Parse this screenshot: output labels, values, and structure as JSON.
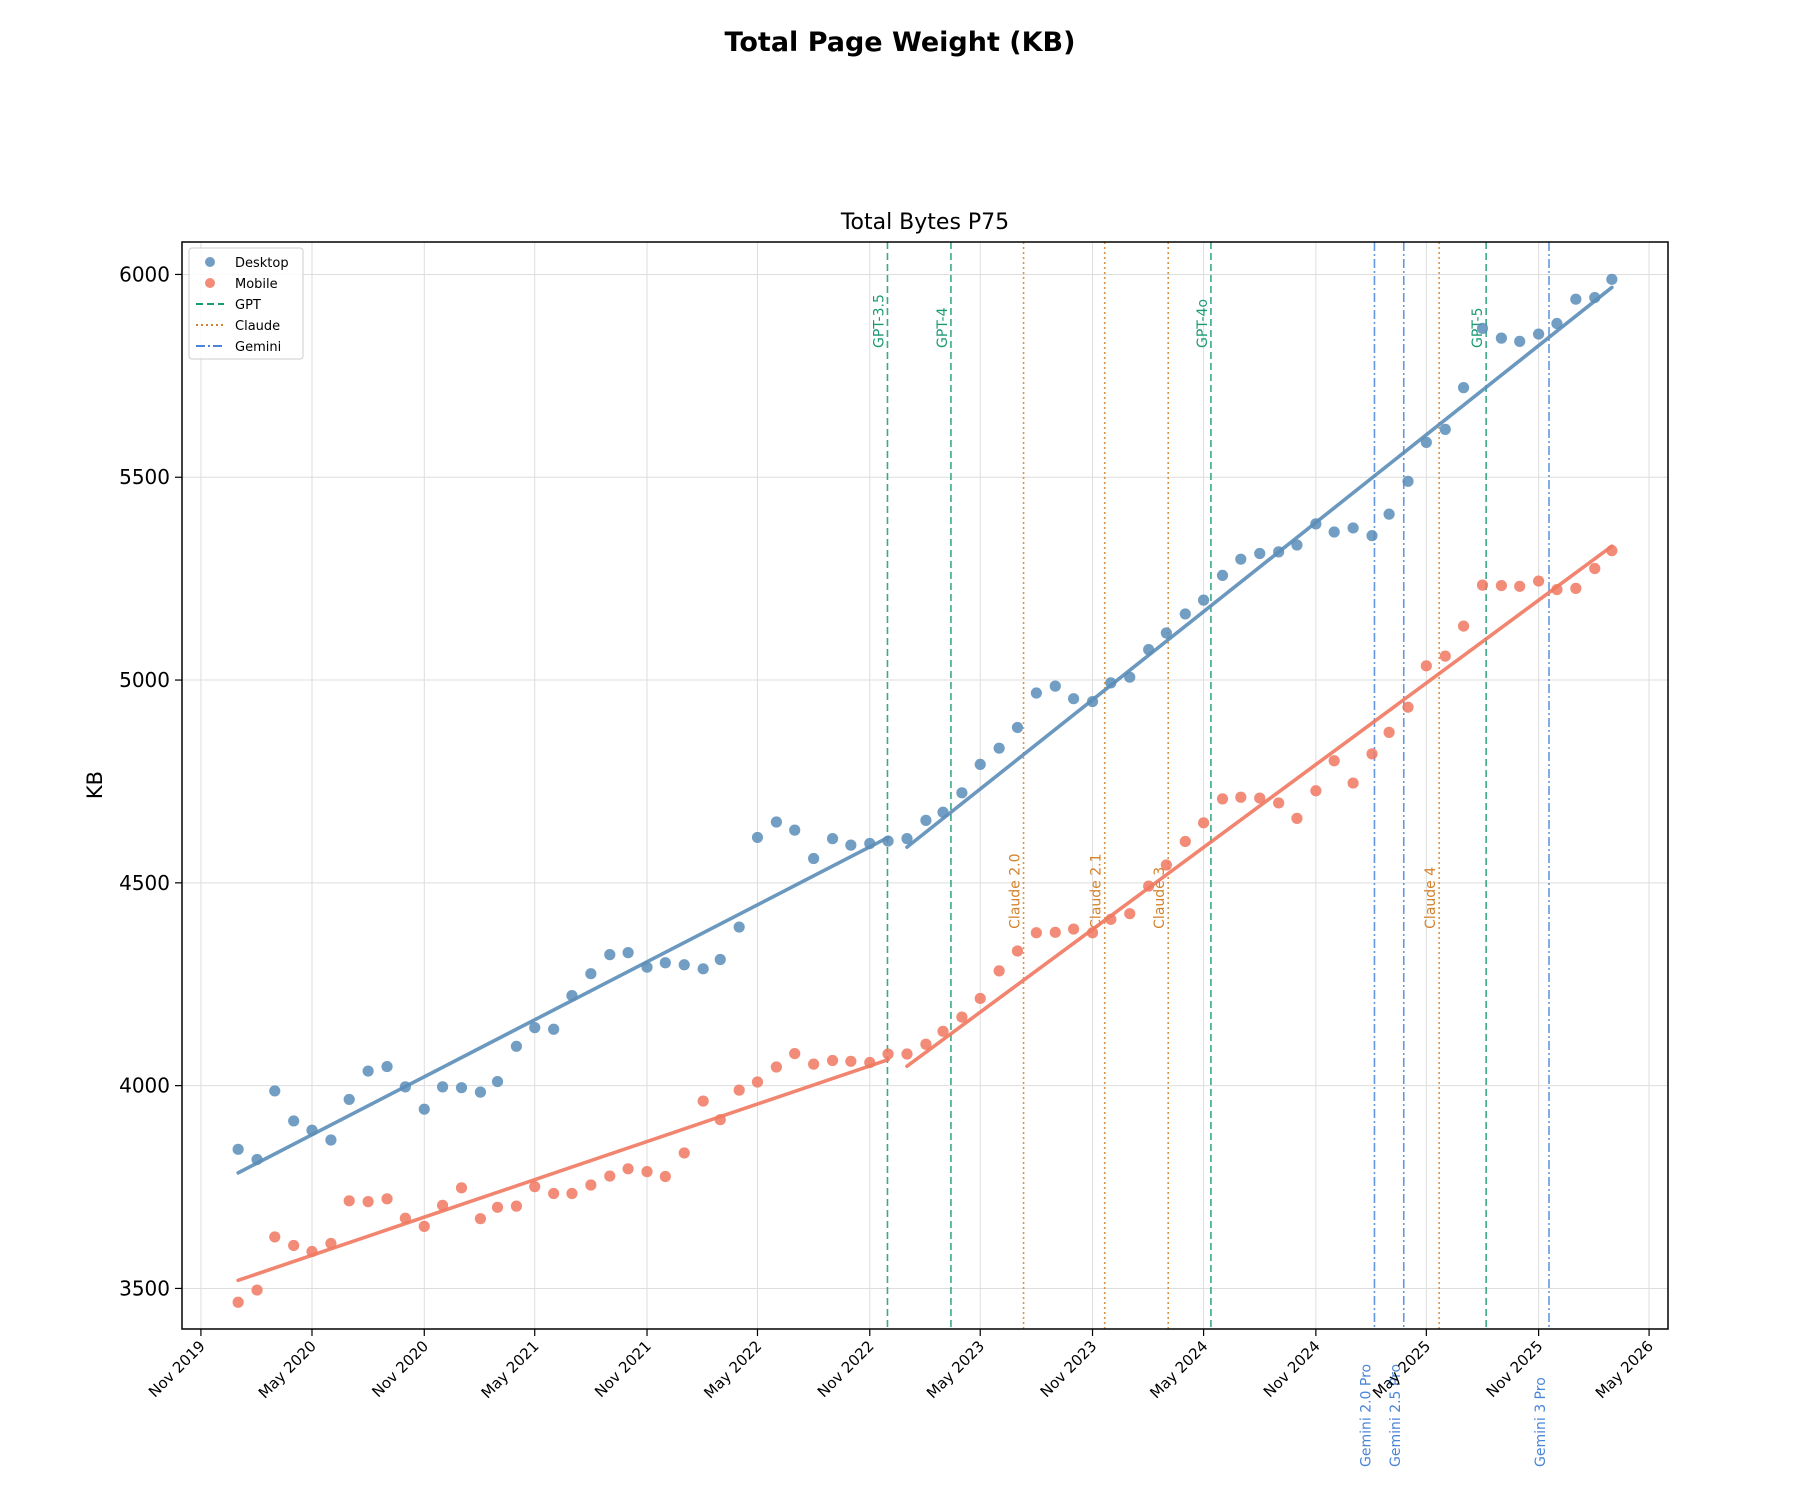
{
  "page": {
    "suptitle": "Total Page Weight (KB)"
  },
  "chart_data": {
    "type": "scatter",
    "title": "Total Bytes P75",
    "xlabel": "",
    "ylabel": "KB",
    "ylim": [
      3400,
      6080
    ],
    "xlim": [
      "2019-10-01",
      "2026-06-01"
    ],
    "grid": true,
    "legend_position": "upper-left",
    "x_ticks": [
      "Nov 2019",
      "May 2020",
      "Nov 2020",
      "May 2021",
      "Nov 2021",
      "May 2022",
      "Nov 2022",
      "May 2023",
      "Nov 2023",
      "May 2024",
      "Nov 2024",
      "May 2025",
      "Nov 2025",
      "May 2026"
    ],
    "y_ticks": [
      3500,
      4000,
      4500,
      5000,
      5500,
      6000
    ],
    "series": [
      {
        "name": "Desktop",
        "color": "#5b8db8",
        "points": [
          [
            "2020-01-01",
            3843
          ],
          [
            "2020-02-01",
            3818
          ],
          [
            "2020-03-01",
            3987
          ],
          [
            "2020-04-01",
            3913
          ],
          [
            "2020-05-01",
            3890
          ],
          [
            "2020-06-01",
            3866
          ],
          [
            "2020-07-01",
            3966
          ],
          [
            "2020-08-01",
            4036
          ],
          [
            "2020-09-01",
            4047
          ],
          [
            "2020-10-01",
            3997
          ],
          [
            "2020-11-01",
            3942
          ],
          [
            "2020-12-01",
            3997
          ],
          [
            "2021-01-01",
            3995
          ],
          [
            "2021-02-01",
            3984
          ],
          [
            "2021-03-01",
            4010
          ],
          [
            "2021-04-01",
            4097
          ],
          [
            "2021-05-01",
            4143
          ],
          [
            "2021-06-01",
            4139
          ],
          [
            "2021-07-01",
            4222
          ],
          [
            "2021-08-01",
            4276
          ],
          [
            "2021-09-01",
            4323
          ],
          [
            "2021-10-01",
            4328
          ],
          [
            "2021-11-01",
            4292
          ],
          [
            "2021-12-01",
            4303
          ],
          [
            "2022-01-01",
            4298
          ],
          [
            "2022-02-01",
            4288
          ],
          [
            "2022-03-01",
            4311
          ],
          [
            "2022-04-01",
            4391
          ],
          [
            "2022-05-01",
            4612
          ],
          [
            "2022-06-01",
            4650
          ],
          [
            "2022-07-01",
            4630
          ],
          [
            "2022-08-01",
            4560
          ],
          [
            "2022-09-01",
            4609
          ],
          [
            "2022-10-01",
            4593
          ],
          [
            "2022-11-01",
            4597
          ],
          [
            "2022-12-01",
            4603
          ],
          [
            "2023-01-01",
            4609
          ],
          [
            "2023-02-01",
            4654
          ],
          [
            "2023-03-01",
            4674
          ],
          [
            "2023-04-01",
            4722
          ],
          [
            "2023-05-01",
            4792
          ],
          [
            "2023-06-01",
            4832
          ],
          [
            "2023-07-01",
            4883
          ],
          [
            "2023-08-01",
            4968
          ],
          [
            "2023-09-01",
            4985
          ],
          [
            "2023-10-01",
            4954
          ],
          [
            "2023-11-01",
            4947
          ],
          [
            "2023-12-01",
            4993
          ],
          [
            "2024-01-01",
            5007
          ],
          [
            "2024-02-01",
            5075
          ],
          [
            "2024-03-01",
            5116
          ],
          [
            "2024-04-01",
            5163
          ],
          [
            "2024-05-01",
            5197
          ],
          [
            "2024-06-01",
            5258
          ],
          [
            "2024-07-01",
            5298
          ],
          [
            "2024-08-01",
            5312
          ],
          [
            "2024-09-01",
            5316
          ],
          [
            "2024-10-01",
            5333
          ],
          [
            "2024-11-01",
            5385
          ],
          [
            "2024-12-01",
            5365
          ],
          [
            "2025-01-01",
            5375
          ],
          [
            "2025-02-01",
            5356
          ],
          [
            "2025-03-01",
            5409
          ],
          [
            "2025-04-01",
            5490
          ],
          [
            "2025-05-01",
            5586
          ],
          [
            "2025-06-01",
            5618
          ],
          [
            "2025-07-01",
            5721
          ],
          [
            "2025-08-01",
            5867
          ],
          [
            "2025-09-01",
            5843
          ],
          [
            "2025-10-01",
            5835
          ],
          [
            "2025-11-01",
            5853
          ],
          [
            "2025-12-01",
            5879
          ],
          [
            "2026-01-01",
            5939
          ],
          [
            "2026-02-01",
            5943
          ],
          [
            "2026-03-01",
            5988
          ]
        ],
        "trend": [
          {
            "from": [
              "2020-01-01",
              3785
            ],
            "to": [
              "2022-12-01",
              4612
            ]
          },
          {
            "from": [
              "2023-01-01",
              4588
            ],
            "to": [
              "2026-03-01",
              5968
            ]
          }
        ]
      },
      {
        "name": "Mobile",
        "color": "#f07860",
        "points": [
          [
            "2020-01-01",
            3466
          ],
          [
            "2020-02-01",
            3496
          ],
          [
            "2020-03-01",
            3627
          ],
          [
            "2020-04-01",
            3606
          ],
          [
            "2020-05-01",
            3591
          ],
          [
            "2020-06-01",
            3611
          ],
          [
            "2020-07-01",
            3716
          ],
          [
            "2020-08-01",
            3714
          ],
          [
            "2020-09-01",
            3721
          ],
          [
            "2020-10-01",
            3673
          ],
          [
            "2020-11-01",
            3653
          ],
          [
            "2020-12-01",
            3705
          ],
          [
            "2021-01-01",
            3748
          ],
          [
            "2021-02-01",
            3672
          ],
          [
            "2021-03-01",
            3700
          ],
          [
            "2021-04-01",
            3703
          ],
          [
            "2021-05-01",
            3751
          ],
          [
            "2021-06-01",
            3734
          ],
          [
            "2021-07-01",
            3734
          ],
          [
            "2021-08-01",
            3755
          ],
          [
            "2021-09-01",
            3777
          ],
          [
            "2021-10-01",
            3795
          ],
          [
            "2021-11-01",
            3788
          ],
          [
            "2021-12-01",
            3776
          ],
          [
            "2022-01-01",
            3834
          ],
          [
            "2022-02-01",
            3962
          ],
          [
            "2022-03-01",
            3916
          ],
          [
            "2022-04-01",
            3989
          ],
          [
            "2022-05-01",
            4009
          ],
          [
            "2022-06-01",
            4046
          ],
          [
            "2022-07-01",
            4079
          ],
          [
            "2022-08-01",
            4053
          ],
          [
            "2022-09-01",
            4062
          ],
          [
            "2022-10-01",
            4060
          ],
          [
            "2022-11-01",
            4057
          ],
          [
            "2022-12-01",
            4078
          ],
          [
            "2023-01-01",
            4078
          ],
          [
            "2023-02-01",
            4102
          ],
          [
            "2023-03-01",
            4134
          ],
          [
            "2023-04-01",
            4169
          ],
          [
            "2023-05-01",
            4215
          ],
          [
            "2023-06-01",
            4283
          ],
          [
            "2023-07-01",
            4332
          ],
          [
            "2023-08-01",
            4377
          ],
          [
            "2023-09-01",
            4378
          ],
          [
            "2023-10-01",
            4386
          ],
          [
            "2023-11-01",
            4377
          ],
          [
            "2023-12-01",
            4410
          ],
          [
            "2024-01-01",
            4424
          ],
          [
            "2024-02-01",
            4492
          ],
          [
            "2024-03-01",
            4544
          ],
          [
            "2024-04-01",
            4602
          ],
          [
            "2024-05-01",
            4648
          ],
          [
            "2024-06-01",
            4707
          ],
          [
            "2024-07-01",
            4711
          ],
          [
            "2024-08-01",
            4709
          ],
          [
            "2024-09-01",
            4697
          ],
          [
            "2024-10-01",
            4659
          ],
          [
            "2024-11-01",
            4727
          ],
          [
            "2024-12-01",
            4801
          ],
          [
            "2025-01-01",
            4746
          ],
          [
            "2025-02-01",
            4818
          ],
          [
            "2025-03-01",
            4871
          ],
          [
            "2025-04-01",
            4933
          ],
          [
            "2025-05-01",
            5035
          ],
          [
            "2025-06-01",
            5059
          ],
          [
            "2025-07-01",
            5133
          ],
          [
            "2025-08-01",
            5234
          ],
          [
            "2025-09-01",
            5233
          ],
          [
            "2025-10-01",
            5231
          ],
          [
            "2025-11-01",
            5244
          ],
          [
            "2025-12-01",
            5223
          ],
          [
            "2026-01-01",
            5226
          ],
          [
            "2026-02-01",
            5275
          ],
          [
            "2026-03-01",
            5319
          ]
        ],
        "trend": [
          {
            "from": [
              "2020-01-01",
              3520
            ],
            "to": [
              "2022-12-01",
              4064
            ]
          },
          {
            "from": [
              "2023-01-01",
              4048
            ],
            "to": [
              "2026-03-01",
              5330
            ]
          }
        ]
      }
    ],
    "event_lines": [
      {
        "label": "GPT-3.5",
        "family": "GPT",
        "date": "2022-11-30"
      },
      {
        "label": "GPT-4",
        "family": "GPT",
        "date": "2023-03-14"
      },
      {
        "label": "GPT-4o",
        "family": "GPT",
        "date": "2024-05-13"
      },
      {
        "label": "GPT-5",
        "family": "GPT",
        "date": "2025-08-07"
      },
      {
        "label": "Claude 2.0",
        "family": "Claude",
        "date": "2023-07-11"
      },
      {
        "label": "Claude 2.1",
        "family": "Claude",
        "date": "2023-11-21"
      },
      {
        "label": "Claude 3",
        "family": "Claude",
        "date": "2024-03-04"
      },
      {
        "label": "Claude 4",
        "family": "Claude",
        "date": "2025-05-22"
      },
      {
        "label": "Gemini 2.0 Pro",
        "family": "Gemini",
        "date": "2025-02-05"
      },
      {
        "label": "Gemini 2.5 Pro",
        "family": "Gemini",
        "date": "2025-03-25"
      },
      {
        "label": "Gemini 3 Pro",
        "family": "Gemini",
        "date": "2025-11-18"
      }
    ],
    "event_families": [
      {
        "name": "GPT",
        "color": "#1a9a73",
        "dash": "dashed"
      },
      {
        "name": "Claude",
        "color": "#d4822a",
        "dash": "dotted"
      },
      {
        "name": "Gemini",
        "color": "#4a85d8",
        "dash": "dashdot"
      }
    ]
  }
}
